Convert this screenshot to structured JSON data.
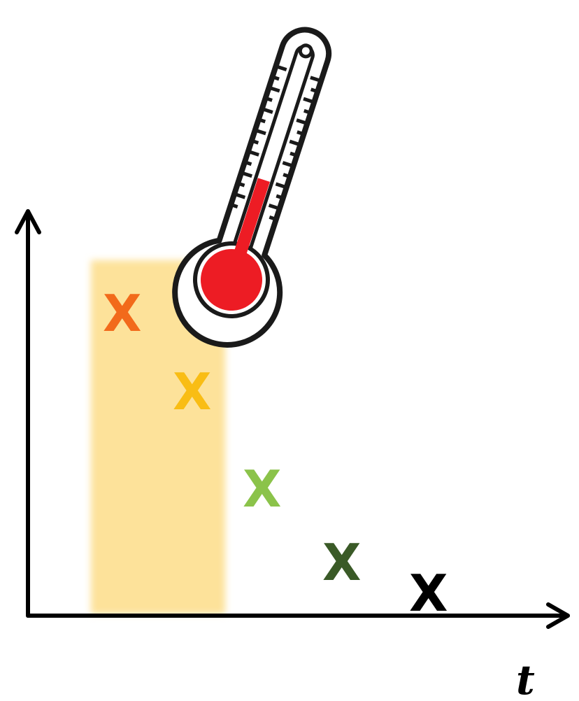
{
  "diagram": {
    "x_axis_label": "t",
    "marker_symbol": "X",
    "highlight_color": "#fde29a",
    "markers": [
      {
        "name": "marker-orange",
        "color": "#f26a1b"
      },
      {
        "name": "marker-yellow",
        "color": "#f9bd14"
      },
      {
        "name": "marker-light-green",
        "color": "#8bc34a"
      },
      {
        "name": "marker-dark-green",
        "color": "#3a5a27"
      },
      {
        "name": "marker-black",
        "color": "#000000"
      }
    ]
  },
  "thermometer": {
    "icon": "thermometer-icon",
    "fill_color": "#ed1c24",
    "level": 0.38
  }
}
